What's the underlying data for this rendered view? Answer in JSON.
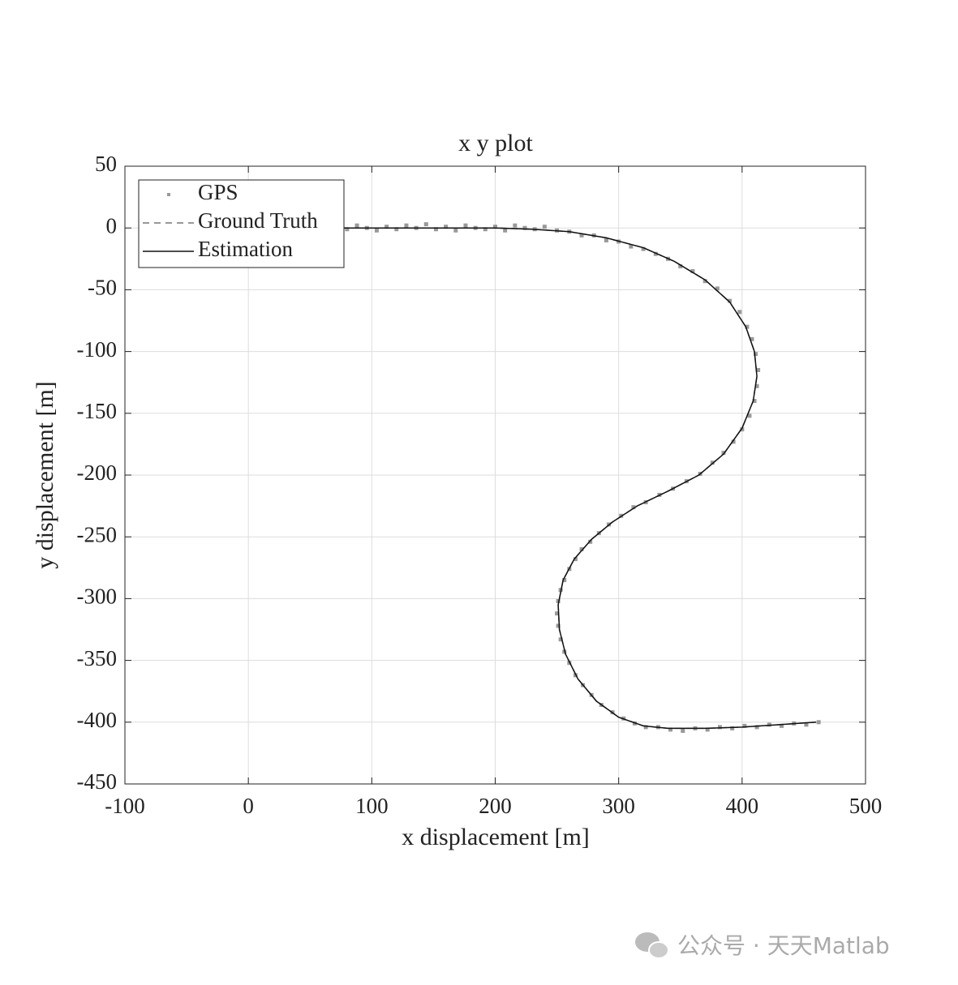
{
  "chart_data": {
    "type": "line",
    "title": "x y plot",
    "xlabel": "x displacement [m]",
    "ylabel": "y displacement [m]",
    "xlim": [
      -100,
      500
    ],
    "xticks": [
      -100,
      0,
      100,
      200,
      300,
      400,
      500
    ],
    "ylim": [
      -450,
      50
    ],
    "yticks": [
      -450,
      -400,
      -350,
      -300,
      -250,
      -200,
      -150,
      -100,
      -50,
      0,
      50
    ],
    "grid": true,
    "legend": "upper left",
    "series": [
      {
        "name": "GPS",
        "color": "#999999",
        "style": "markers",
        "x": [
          72,
          80,
          88,
          96,
          104,
          112,
          120,
          128,
          136,
          144,
          152,
          160,
          168,
          176,
          184,
          192,
          200,
          208,
          216,
          224,
          232,
          240,
          250,
          260,
          270,
          280,
          290,
          300,
          310,
          320,
          330,
          340,
          350,
          360,
          370,
          380,
          390,
          398,
          404,
          408,
          411,
          413,
          412,
          410,
          406,
          400,
          393,
          385,
          376,
          366,
          355,
          344,
          333,
          322,
          312,
          302,
          292,
          284,
          277,
          270,
          265,
          260,
          256,
          253,
          251,
          250,
          251,
          253,
          256,
          260,
          265,
          271,
          278,
          286,
          295,
          304,
          313,
          322,
          332,
          342,
          352,
          362,
          372,
          382,
          392,
          402,
          412,
          422,
          432,
          442,
          452,
          462
        ],
        "values": [
          1,
          -1,
          2,
          0,
          -2,
          1,
          -1,
          2,
          0,
          3,
          -1,
          1,
          -2,
          2,
          0,
          -1,
          1,
          -2,
          2,
          0,
          -1,
          1,
          -2,
          -3,
          -6,
          -6,
          -10,
          -11,
          -15,
          -17,
          -21,
          -25,
          -31,
          -35,
          -43,
          -49,
          -59,
          -68,
          -80,
          -90,
          -102,
          -115,
          -128,
          -140,
          -152,
          -163,
          -173,
          -182,
          -190,
          -199,
          -205,
          -211,
          -216,
          -222,
          -226,
          -233,
          -240,
          -247,
          -254,
          -260,
          -268,
          -276,
          -285,
          -293,
          -302,
          -312,
          -322,
          -333,
          -343,
          -352,
          -362,
          -370,
          -378,
          -386,
          -392,
          -397,
          -401,
          -404,
          -404,
          -406,
          -407,
          -405,
          -406,
          -404,
          -405,
          -403,
          -404,
          -402,
          -403,
          -401,
          -402,
          -400
        ]
      },
      {
        "name": "Ground Truth",
        "color": "#777777",
        "style": "dashed",
        "x": [
          75,
          100,
          150,
          200,
          230,
          260,
          290,
          320,
          345,
          370,
          390,
          403,
          410,
          412,
          409,
          400,
          385,
          365,
          340,
          315,
          295,
          278,
          264,
          255,
          251,
          252,
          257,
          267,
          282,
          300,
          320,
          340,
          370,
          400,
          430,
          460
        ],
        "values": [
          0,
          0,
          0,
          0,
          -1,
          -3,
          -8,
          -16,
          -27,
          -42,
          -60,
          -80,
          -100,
          -120,
          -140,
          -162,
          -183,
          -200,
          -213,
          -225,
          -238,
          -252,
          -268,
          -285,
          -305,
          -325,
          -345,
          -365,
          -383,
          -396,
          -403,
          -405,
          -405,
          -404,
          -402,
          -400
        ]
      },
      {
        "name": "Estimation",
        "color": "#111111",
        "style": "solid",
        "x": [
          75,
          100,
          150,
          200,
          230,
          260,
          290,
          320,
          345,
          370,
          390,
          403,
          410,
          412,
          409,
          400,
          385,
          365,
          340,
          315,
          295,
          278,
          264,
          255,
          251,
          252,
          257,
          267,
          282,
          300,
          320,
          340,
          370,
          400,
          430,
          460
        ],
        "values": [
          0,
          0,
          0,
          0,
          -1,
          -3,
          -8,
          -16,
          -27,
          -42,
          -60,
          -80,
          -100,
          -120,
          -140,
          -162,
          -183,
          -200,
          -213,
          -225,
          -238,
          -252,
          -268,
          -285,
          -305,
          -325,
          -345,
          -365,
          -383,
          -396,
          -403,
          -405,
          -405,
          -404,
          -402,
          -400
        ]
      }
    ]
  },
  "watermark": "公众号 · 天天Matlab"
}
